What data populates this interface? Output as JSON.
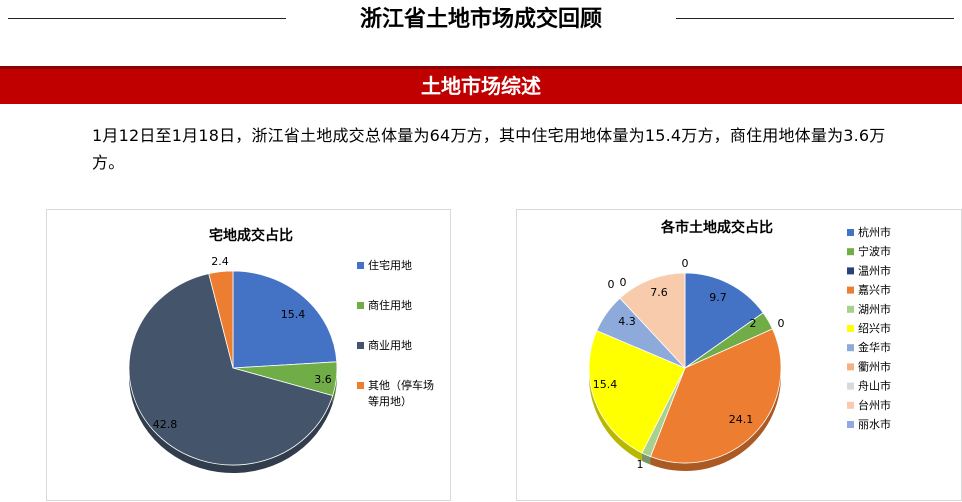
{
  "page": {
    "title": "浙江省土地市场成交回顾",
    "section_title": "土地市场综述",
    "summary": "1月12日至1月18日，浙江省土地成交总体量为64万方，其中住宅用地体量为15.4万方，商住用地体量为3.6万方。"
  },
  "chart_data": [
    {
      "type": "pie",
      "title": "宅地成交占比",
      "categories": [
        "住宅用地",
        "商住用地",
        "商业用地",
        "其他（停车场等用地）"
      ],
      "legend_lines": [
        [
          "住宅用地"
        ],
        [
          "商住用地"
        ],
        [
          "商业用地"
        ],
        [
          "其他（停车场",
          "等用地）"
        ]
      ],
      "values": [
        15.4,
        3.6,
        42.8,
        2.4
      ],
      "value_labels": [
        "15.4",
        "3.6",
        "42.8",
        "2.4"
      ],
      "colors": [
        "#4472c4",
        "#70ad47",
        "#44546a",
        "#ed7d31"
      ],
      "legend_position": "right"
    },
    {
      "type": "pie",
      "title": "各市土地成交占比",
      "categories": [
        "杭州市",
        "宁波市",
        "温州市",
        "嘉兴市",
        "湖州市",
        "绍兴市",
        "金华市",
        "衢州市",
        "舟山市",
        "台州市",
        "丽水市"
      ],
      "values": [
        9.7,
        2,
        0,
        24.1,
        1,
        15.4,
        4.3,
        0,
        0,
        7.6,
        0
      ],
      "value_labels": [
        "9.7",
        "2",
        "0",
        "24.1",
        "1",
        "15.4",
        "4.3",
        "0",
        "0",
        "7.6",
        "0"
      ],
      "colors": [
        "#4472c4",
        "#70ad47",
        "#264478",
        "#ed7d31",
        "#a9d18e",
        "#ffff00",
        "#8eaadb",
        "#f4b183",
        "#d9d9d9",
        "#f8cbad",
        "#8faadc"
      ],
      "legend_position": "right"
    }
  ]
}
